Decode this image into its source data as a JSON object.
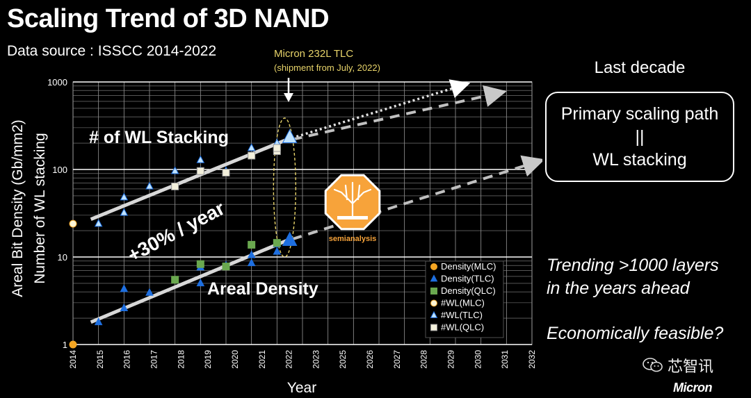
{
  "header": {
    "title": "Scaling Trend of 3D NAND",
    "subtitle": "Data source : ISSCC 2014-2022"
  },
  "callout": {
    "line1": "Micron 232L TLC",
    "line2": "(shipment from July, 2022)"
  },
  "right_panel": {
    "heading": "Last decade",
    "box_lines": [
      "Primary scaling path",
      "||",
      "WL stacking"
    ],
    "trend_lines": [
      "Trending >1000 layers",
      "in the years ahead"
    ],
    "question": "Economically feasible?"
  },
  "watermark": {
    "text": "芯智讯",
    "icon": "wechat-icon"
  },
  "brand": "Micron",
  "logo": {
    "text": "semianalysis"
  },
  "colors": {
    "mlc": "#f5a623",
    "tlc": "#1e6fe0",
    "qlc": "#6aa84f",
    "wl_mlc": "#fdf5d6",
    "wl_tlc": "#bfe3ff",
    "wl_qlc": "#f3f0dc",
    "callout": "#e8d46a",
    "logo_orange": "#f7a33a"
  },
  "chart_data": {
    "type": "scatter",
    "xlabel": "Year",
    "ylabel_lines": [
      "Areal Bit Density (Gb/mm2)",
      "Number of WL stacking"
    ],
    "y_scale": "log",
    "ylim": [
      1,
      1000
    ],
    "xlim": [
      2014,
      2032
    ],
    "x_ticks": [
      "2014",
      "2015",
      "2016",
      "2017",
      "2018",
      "2019",
      "2020",
      "2021",
      "2022",
      "2023",
      "2025",
      "2026",
      "2027",
      "2028",
      "2029",
      "2030",
      "2031",
      "2032"
    ],
    "y_ticks": [
      "1",
      "10",
      "100",
      "1000"
    ],
    "grid": true,
    "legend_position": "bottom-right",
    "series": [
      {
        "name": "Density(MLC)",
        "marker": "circle",
        "points": [
          [
            2014,
            1.0
          ]
        ]
      },
      {
        "name": "Density(TLC)",
        "marker": "triangle",
        "points": [
          [
            2015,
            1.8
          ],
          [
            2016,
            4.3
          ],
          [
            2016,
            2.6
          ],
          [
            2017,
            3.9
          ],
          [
            2019,
            5.0
          ],
          [
            2019,
            7.6
          ],
          [
            2020,
            8.0
          ],
          [
            2021,
            8.5
          ],
          [
            2021,
            10.5
          ],
          [
            2022,
            11.5
          ],
          [
            2022,
            14.0
          ],
          [
            2022.5,
            15.5
          ]
        ]
      },
      {
        "name": "Density(QLC)",
        "marker": "square",
        "points": [
          [
            2018,
            5.5
          ],
          [
            2019,
            8.3
          ],
          [
            2020,
            7.8
          ],
          [
            2021,
            13.8
          ],
          [
            2022,
            14.5
          ]
        ]
      },
      {
        "name": "#WL(MLC)",
        "marker": "circle",
        "points": [
          [
            2014,
            24
          ]
        ]
      },
      {
        "name": "#WL(TLC)",
        "marker": "triangle",
        "points": [
          [
            2015,
            24
          ],
          [
            2016,
            32
          ],
          [
            2016,
            48
          ],
          [
            2017,
            64
          ],
          [
            2018,
            96
          ],
          [
            2019,
            128
          ],
          [
            2019,
            96
          ],
          [
            2020,
            96
          ],
          [
            2021,
            176
          ],
          [
            2022,
            200
          ],
          [
            2022.5,
            232
          ]
        ]
      },
      {
        "name": "#WL(QLC)",
        "marker": "square",
        "points": [
          [
            2018,
            64
          ],
          [
            2019,
            96
          ],
          [
            2020,
            92
          ],
          [
            2021,
            144
          ],
          [
            2022,
            162
          ],
          [
            2022,
            176
          ]
        ]
      }
    ],
    "annotations": [
      {
        "text": "# of WL Stacking"
      },
      {
        "text": "+30% / year"
      },
      {
        "text": "Areal Density"
      }
    ]
  }
}
